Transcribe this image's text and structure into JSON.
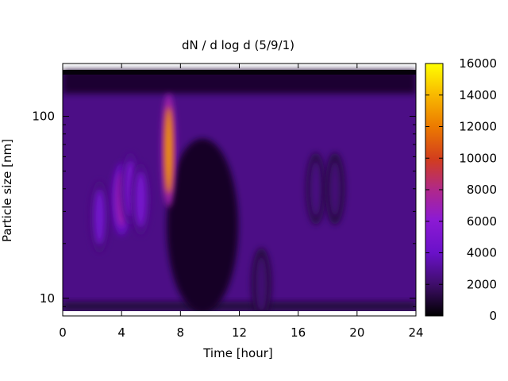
{
  "chart_data": {
    "type": "heatmap",
    "title": "dN / d log d (5/9/1)",
    "xlabel": "Time [hour]",
    "ylabel": "Particle size [nm]",
    "xlim": [
      0,
      24
    ],
    "ylim": [
      8.5,
      180
    ],
    "yscale": "log",
    "x_ticks": [
      0,
      4,
      8,
      12,
      16,
      20,
      24
    ],
    "x_tick_labels": [
      "0",
      "4",
      "8",
      "12",
      "16",
      "20",
      "24"
    ],
    "y_ticks": [
      10,
      100
    ],
    "y_tick_labels": [
      "10",
      "100"
    ],
    "colorbar": {
      "range": [
        0,
        16000
      ],
      "ticks": [
        0,
        2000,
        4000,
        6000,
        8000,
        10000,
        12000,
        14000,
        16000
      ],
      "tick_labels": [
        "0",
        "2000",
        "4000",
        "6000",
        "8000",
        "10000",
        "12000",
        "14000",
        "16000"
      ],
      "colormap": "gnuplot-black-purple-red-yellow"
    },
    "features": [
      {
        "time_hour": 2.5,
        "diameter_nm": 28,
        "value": 4500
      },
      {
        "time_hour": 4.0,
        "diameter_nm": 35,
        "value": 7000
      },
      {
        "time_hour": 4.6,
        "diameter_nm": 40,
        "value": 5000
      },
      {
        "time_hour": 5.3,
        "diameter_nm": 35,
        "value": 4800
      },
      {
        "time_hour": 7.2,
        "diameter_nm": 65,
        "value": 13000
      },
      {
        "time_hour": 13.5,
        "diameter_nm": 12,
        "value": 2200
      },
      {
        "time_hour": 17.2,
        "diameter_nm": 40,
        "value": 2500
      },
      {
        "time_hour": 18.5,
        "diameter_nm": 40,
        "value": 2300
      }
    ],
    "grid": false,
    "legend": "colorbar-right"
  }
}
